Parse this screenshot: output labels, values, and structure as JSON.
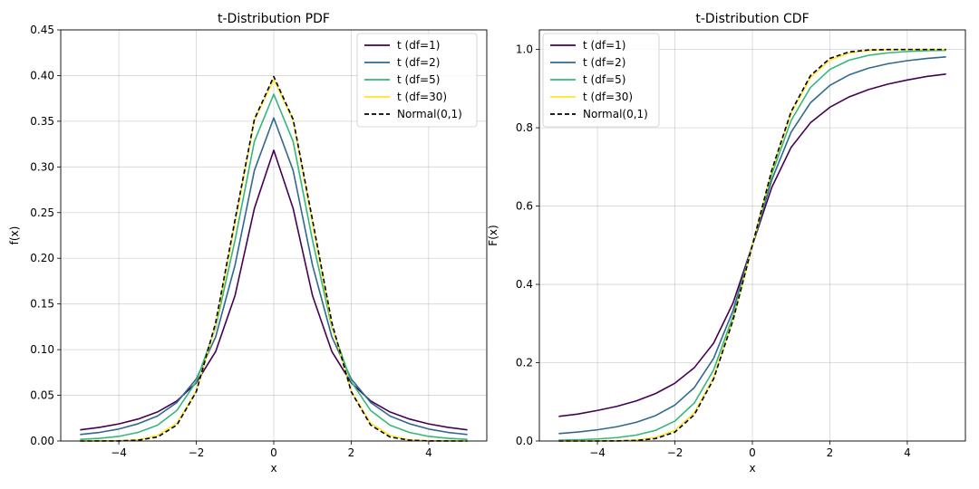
{
  "chart_data": [
    {
      "type": "line",
      "title": "t-Distribution PDF",
      "xlabel": "x",
      "ylabel": "f(x)",
      "xlim": [
        -5.5,
        5.5
      ],
      "ylim": [
        0,
        0.45
      ],
      "xticks": [
        -4,
        -2,
        0,
        2,
        4
      ],
      "xtick_labels": [
        "−4",
        "−2",
        "0",
        "2",
        "4"
      ],
      "yticks": [
        0.0,
        0.05,
        0.1,
        0.15,
        0.2,
        0.25,
        0.3,
        0.35,
        0.4,
        0.45
      ],
      "ytick_labels": [
        "0.00",
        "0.05",
        "0.10",
        "0.15",
        "0.20",
        "0.25",
        "0.30",
        "0.35",
        "0.40",
        "0.45"
      ],
      "grid": true,
      "legend_position": "top-right",
      "x": [
        -5,
        -4.5,
        -4,
        -3.5,
        -3,
        -2.5,
        -2,
        -1.5,
        -1,
        -0.5,
        0,
        0.5,
        1,
        1.5,
        2,
        2.5,
        3,
        3.5,
        4,
        4.5,
        5
      ],
      "series": [
        {
          "name": "t (df=1)",
          "color": "#440154",
          "values": [
            0.0122,
            0.0149,
            0.0187,
            0.0241,
            0.0318,
            0.0439,
            0.0637,
            0.0979,
            0.1592,
            0.2546,
            0.3183,
            0.2546,
            0.1592,
            0.0979,
            0.0637,
            0.0439,
            0.0318,
            0.0241,
            0.0187,
            0.0149,
            0.0122
          ]
        },
        {
          "name": "t (df=2)",
          "color": "#31688e",
          "values": [
            0.0071,
            0.0094,
            0.0131,
            0.0189,
            0.0274,
            0.0422,
            0.068,
            0.114,
            0.1925,
            0.2962,
            0.3536,
            0.2962,
            0.1925,
            0.114,
            0.068,
            0.0422,
            0.0274,
            0.0189,
            0.0131,
            0.0094,
            0.0071
          ]
        },
        {
          "name": "t (df=5)",
          "color": "#35b779",
          "values": [
            0.0018,
            0.0029,
            0.0051,
            0.0094,
            0.0173,
            0.0335,
            0.0651,
            0.1245,
            0.2197,
            0.3279,
            0.3796,
            0.3279,
            0.2197,
            0.1245,
            0.0651,
            0.0335,
            0.0173,
            0.0094,
            0.0051,
            0.0029,
            0.0018
          ]
        },
        {
          "name": "t (df=30)",
          "color": "#fde725",
          "values": [
            2e-05,
            0.0001,
            0.0003,
            0.0012,
            0.0062,
            0.0195,
            0.0546,
            0.1264,
            0.2384,
            0.3509,
            0.3956,
            0.3509,
            0.2384,
            0.1264,
            0.0546,
            0.0195,
            0.0062,
            0.0012,
            0.0003,
            0.0001,
            2e-05
          ]
        },
        {
          "name": "Normal(0,1)",
          "color": "#000000",
          "dashed": true,
          "values": [
            1.5e-06,
            1.6e-05,
            0.0001,
            0.0009,
            0.0044,
            0.0175,
            0.054,
            0.1295,
            0.242,
            0.3521,
            0.3989,
            0.3521,
            0.242,
            0.1295,
            0.054,
            0.0175,
            0.0044,
            0.0009,
            0.0001,
            1.6e-05,
            1.5e-06
          ]
        }
      ]
    },
    {
      "type": "line",
      "title": "t-Distribution CDF",
      "xlabel": "x",
      "ylabel": "F(x)",
      "xlim": [
        -5.5,
        5.5
      ],
      "ylim": [
        0,
        1.05
      ],
      "xticks": [
        -4,
        -2,
        0,
        2,
        4
      ],
      "xtick_labels": [
        "−4",
        "−2",
        "0",
        "2",
        "4"
      ],
      "yticks": [
        0.0,
        0.2,
        0.4,
        0.6,
        0.8,
        1.0
      ],
      "ytick_labels": [
        "0.0",
        "0.2",
        "0.4",
        "0.6",
        "0.8",
        "1.0"
      ],
      "grid": true,
      "legend_position": "top-left",
      "x": [
        -5,
        -4.5,
        -4,
        -3.5,
        -3,
        -2.5,
        -2,
        -1.5,
        -1,
        -0.5,
        0,
        0.5,
        1,
        1.5,
        2,
        2.5,
        3,
        3.5,
        4,
        4.5,
        5
      ],
      "series": [
        {
          "name": "t (df=1)",
          "color": "#440154",
          "values": [
            0.0628,
            0.069,
            0.078,
            0.0885,
            0.1024,
            0.1211,
            0.1476,
            0.1872,
            0.25,
            0.3524,
            0.5,
            0.6476,
            0.75,
            0.8128,
            0.8524,
            0.8789,
            0.8976,
            0.9115,
            0.922,
            0.931,
            0.9372
          ]
        },
        {
          "name": "t (df=2)",
          "color": "#31688e",
          "values": [
            0.0189,
            0.023,
            0.0286,
            0.0364,
            0.0477,
            0.0648,
            0.0918,
            0.1362,
            0.2113,
            0.3333,
            0.5,
            0.6667,
            0.7887,
            0.8638,
            0.9082,
            0.9352,
            0.9523,
            0.9636,
            0.9714,
            0.977,
            0.9811
          ]
        },
        {
          "name": "t (df=5)",
          "color": "#35b779",
          "values": [
            0.0021,
            0.0032,
            0.0052,
            0.0087,
            0.015,
            0.0272,
            0.051,
            0.097,
            0.1816,
            0.3191,
            0.5,
            0.6809,
            0.8184,
            0.903,
            0.949,
            0.9728,
            0.985,
            0.9913,
            0.9948,
            0.9968,
            0.9979
          ]
        },
        {
          "name": "t (df=30)",
          "color": "#fde725",
          "values": [
            1e-05,
            5e-05,
            0.0002,
            0.0007,
            0.0027,
            0.0091,
            0.0273,
            0.072,
            0.1627,
            0.3104,
            0.5,
            0.6896,
            0.8373,
            0.928,
            0.9727,
            0.9909,
            0.9973,
            0.9993,
            0.9998,
            0.99995,
            0.99999
          ]
        },
        {
          "name": "Normal(0,1)",
          "color": "#000000",
          "dashed": true,
          "values": [
            3e-07,
            3.4e-06,
            3e-05,
            0.0002,
            0.0013,
            0.0062,
            0.0228,
            0.0668,
            0.1587,
            0.3085,
            0.5,
            0.6915,
            0.8413,
            0.9332,
            0.9772,
            0.9938,
            0.9987,
            0.9998,
            0.99997,
            0.999997,
            0.9999997
          ]
        }
      ]
    }
  ]
}
